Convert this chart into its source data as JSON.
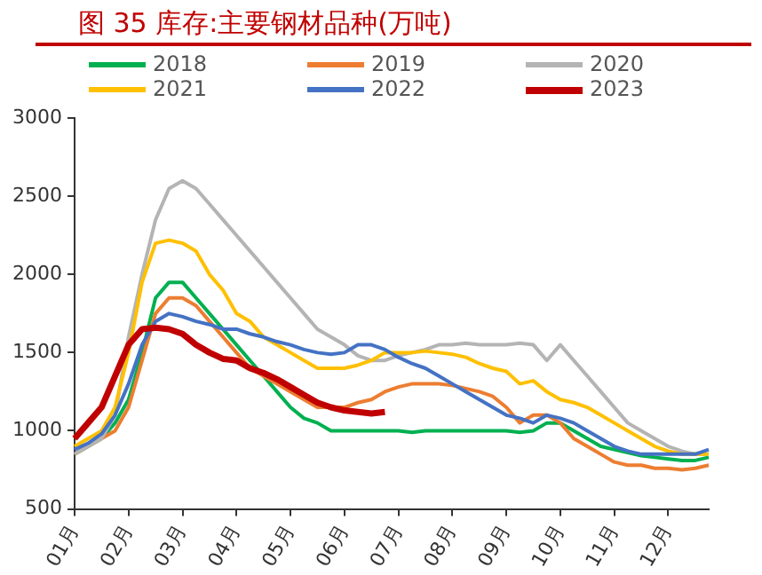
{
  "chart_data": {
    "type": "line",
    "title": "图 35 库存:主要钢材品种(万吨)",
    "categories": [
      "01月",
      null,
      null,
      null,
      "02月",
      null,
      null,
      null,
      "03月",
      null,
      null,
      null,
      "04月",
      null,
      null,
      null,
      "05月",
      null,
      null,
      null,
      "06月",
      null,
      null,
      null,
      "07月",
      null,
      null,
      null,
      "08月",
      null,
      null,
      null,
      "09月",
      null,
      null,
      null,
      "10月",
      null,
      null,
      null,
      "11月",
      null,
      null,
      null,
      "12月",
      null,
      null,
      null
    ],
    "series": [
      {
        "name": "2018",
        "color": "#00b050",
        "values": [
          850,
          900,
          950,
          1050,
          1200,
          1500,
          1850,
          1950,
          1950,
          1850,
          1750,
          1650,
          1550,
          1450,
          1350,
          1250,
          1150,
          1080,
          1050,
          1000,
          1000,
          1000,
          1000,
          1000,
          1000,
          990,
          1000,
          1000,
          1000,
          1000,
          1000,
          1000,
          1000,
          990,
          1000,
          1050,
          1050,
          1000,
          950,
          900,
          880,
          860,
          840,
          830,
          820,
          810,
          810,
          830
        ]
      },
      {
        "name": "2019",
        "color": "#ed7d31",
        "values": [
          850,
          900,
          950,
          1000,
          1150,
          1450,
          1750,
          1850,
          1850,
          1800,
          1700,
          1600,
          1500,
          1400,
          1350,
          1300,
          1250,
          1200,
          1150,
          1150,
          1150,
          1180,
          1200,
          1250,
          1280,
          1300,
          1300,
          1300,
          1290,
          1270,
          1250,
          1220,
          1150,
          1050,
          1100,
          1100,
          1050,
          950,
          900,
          850,
          800,
          780,
          780,
          760,
          760,
          750,
          760,
          780
        ]
      },
      {
        "name": "2020",
        "color": "#b4b4b4",
        "values": [
          850,
          900,
          950,
          1100,
          1600,
          2000,
          2350,
          2550,
          2600,
          2550,
          2450,
          2350,
          2250,
          2150,
          2050,
          1950,
          1850,
          1750,
          1650,
          1600,
          1550,
          1480,
          1450,
          1450,
          1480,
          1500,
          1520,
          1550,
          1550,
          1560,
          1550,
          1550,
          1550,
          1560,
          1550,
          1450,
          1550,
          1450,
          1350,
          1250,
          1150,
          1050,
          1000,
          950,
          900,
          870,
          850,
          850
        ]
      },
      {
        "name": "2021",
        "color": "#ffc000",
        "values": [
          900,
          950,
          1000,
          1150,
          1500,
          1950,
          2200,
          2220,
          2200,
          2150,
          2000,
          1900,
          1750,
          1700,
          1600,
          1550,
          1500,
          1450,
          1400,
          1400,
          1400,
          1420,
          1450,
          1500,
          1500,
          1500,
          1510,
          1500,
          1490,
          1470,
          1430,
          1400,
          1380,
          1300,
          1320,
          1250,
          1200,
          1180,
          1150,
          1100,
          1050,
          1000,
          950,
          900,
          870,
          850,
          850,
          850
        ]
      },
      {
        "name": "2022",
        "color": "#4472c4",
        "values": [
          880,
          920,
          980,
          1100,
          1300,
          1550,
          1700,
          1750,
          1730,
          1700,
          1680,
          1650,
          1650,
          1620,
          1600,
          1570,
          1550,
          1520,
          1500,
          1490,
          1500,
          1550,
          1550,
          1520,
          1470,
          1430,
          1400,
          1350,
          1300,
          1250,
          1200,
          1150,
          1100,
          1080,
          1050,
          1100,
          1080,
          1050,
          1000,
          950,
          900,
          870,
          850,
          850,
          850,
          850,
          850,
          880
        ]
      },
      {
        "name": "2023",
        "color": "#c00000",
        "values": [
          950,
          1050,
          1150,
          1350,
          1550,
          1650,
          1660,
          1650,
          1620,
          1550,
          1500,
          1460,
          1450,
          1400,
          1370,
          1330,
          1280,
          1230,
          1180,
          1150,
          1130,
          1120,
          1110,
          1120,
          null,
          null,
          null,
          null,
          null,
          null,
          null,
          null,
          null,
          null,
          null,
          null,
          null,
          null,
          null,
          null,
          null,
          null,
          null,
          null,
          null,
          null,
          null,
          null
        ]
      }
    ],
    "ylim": [
      500,
      3000
    ],
    "yticks": [
      500,
      1000,
      1500,
      2000,
      2500,
      3000
    ],
    "grid": false,
    "legend": "top",
    "marker": "none",
    "line_style": "solid"
  }
}
